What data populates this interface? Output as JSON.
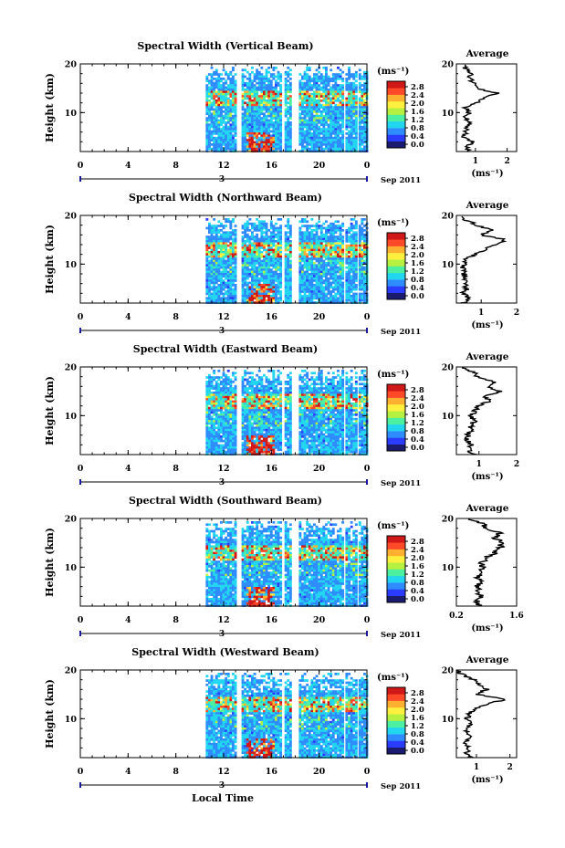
{
  "chart_data": {
    "type": "heatmap",
    "x_axis": {
      "label": "Local Time",
      "ticks": [
        "0",
        "4",
        "8",
        "12",
        "16",
        "20",
        "0"
      ],
      "range": [
        0,
        24
      ],
      "day_label": "3",
      "date_label": "Sep 2011"
    },
    "y_axis": {
      "label": "Height (km)",
      "ticks": [
        "20",
        "10"
      ],
      "range": [
        2,
        20
      ]
    },
    "colorbar": {
      "unit": "(ms⁻¹)",
      "ticks": [
        "2.8",
        "2.4",
        "2.0",
        "1.6",
        "1.2",
        "0.8",
        "0.4",
        "0.0"
      ],
      "range": [
        0,
        2.8
      ],
      "colors": [
        "#1a1a6e",
        "#2a3cff",
        "#2f8cff",
        "#22d6f0",
        "#4cf0a0",
        "#b6f040",
        "#fff040",
        "#ffb030",
        "#ff4a2a",
        "#d01818"
      ]
    },
    "data_intervals_hours": [
      [
        10.5,
        13.0
      ],
      [
        13.5,
        16.8
      ],
      [
        17.1,
        17.6
      ],
      [
        18.3,
        22.0
      ],
      [
        22.2,
        23.0
      ],
      [
        23.3,
        24.0
      ]
    ],
    "panels": [
      {
        "title": "Spectral Width (Vertical Beam)",
        "average": {
          "title": "Average",
          "xlabel": "(ms⁻¹)",
          "xticks": [
            "1",
            "2"
          ],
          "xrange": [
            0.4,
            2.3
          ],
          "heights": [
            2,
            3,
            4,
            5,
            6,
            7,
            8,
            9,
            10,
            11,
            12,
            13,
            14,
            15,
            16,
            17,
            18,
            19,
            20
          ],
          "values": [
            0.8,
            0.7,
            0.9,
            0.6,
            0.7,
            0.7,
            0.8,
            0.7,
            0.8,
            0.7,
            1.0,
            1.3,
            1.7,
            1.0,
            1.0,
            0.8,
            0.9,
            0.7,
            0.6
          ]
        }
      },
      {
        "title": "Spectral Width (Northward Beam)",
        "average": {
          "title": "Average",
          "xlabel": "(ms⁻¹)",
          "xticks": [
            "1",
            "2"
          ],
          "xrange": [
            0.3,
            2.0
          ],
          "heights": [
            2,
            3,
            4,
            5,
            6,
            7,
            8,
            9,
            10,
            11,
            12,
            13,
            14,
            15,
            16,
            17,
            18,
            19,
            20
          ],
          "values": [
            0.5,
            0.6,
            0.5,
            0.6,
            0.5,
            0.6,
            0.5,
            0.5,
            0.5,
            0.6,
            0.8,
            1.1,
            1.4,
            1.7,
            1.0,
            1.3,
            0.9,
            0.6,
            0.4
          ]
        }
      },
      {
        "title": "Spectral Width (Eastward Beam)",
        "average": {
          "title": "Average",
          "xlabel": "(ms⁻¹)",
          "xticks": [
            "1",
            "2"
          ],
          "xrange": [
            0.4,
            2.0
          ],
          "heights": [
            2,
            3,
            4,
            5,
            6,
            7,
            8,
            9,
            10,
            11,
            12,
            13,
            14,
            15,
            16,
            17,
            18,
            19,
            20
          ],
          "values": [
            0.9,
            0.7,
            0.8,
            0.7,
            0.7,
            0.8,
            0.8,
            0.9,
            0.8,
            0.9,
            1.0,
            1.3,
            1.1,
            1.6,
            1.2,
            1.4,
            1.0,
            0.8,
            0.5
          ]
        }
      },
      {
        "title": "Spectral Width (Southward Beam)",
        "average": {
          "title": "Average",
          "xlabel": "(ms⁻¹)",
          "xticks": [
            "0.2",
            "1.6"
          ],
          "xrange": [
            0.2,
            1.6
          ],
          "heights": [
            2,
            3,
            4,
            5,
            6,
            7,
            8,
            9,
            10,
            11,
            12,
            13,
            14,
            15,
            16,
            17,
            18,
            19,
            20
          ],
          "values": [
            0.7,
            0.7,
            0.75,
            0.7,
            0.7,
            0.75,
            0.7,
            0.8,
            0.8,
            0.8,
            0.9,
            1.1,
            1.2,
            1.3,
            1.1,
            1.2,
            0.9,
            0.8,
            0.4
          ]
        }
      },
      {
        "title": "Spectral Width (Westward Beam)",
        "average": {
          "title": "Average",
          "xlabel": "(ms⁻¹)",
          "xticks": [
            "1",
            "2"
          ],
          "xrange": [
            0.4,
            2.2
          ],
          "heights": [
            2,
            3,
            4,
            5,
            6,
            7,
            8,
            9,
            10,
            11,
            12,
            13,
            14,
            15,
            16,
            17,
            18,
            19,
            20
          ],
          "values": [
            0.8,
            0.7,
            0.8,
            0.7,
            0.8,
            0.7,
            0.7,
            0.8,
            0.7,
            0.8,
            0.9,
            1.3,
            1.9,
            1.0,
            1.3,
            1.1,
            0.9,
            0.6,
            0.4
          ]
        }
      }
    ]
  }
}
